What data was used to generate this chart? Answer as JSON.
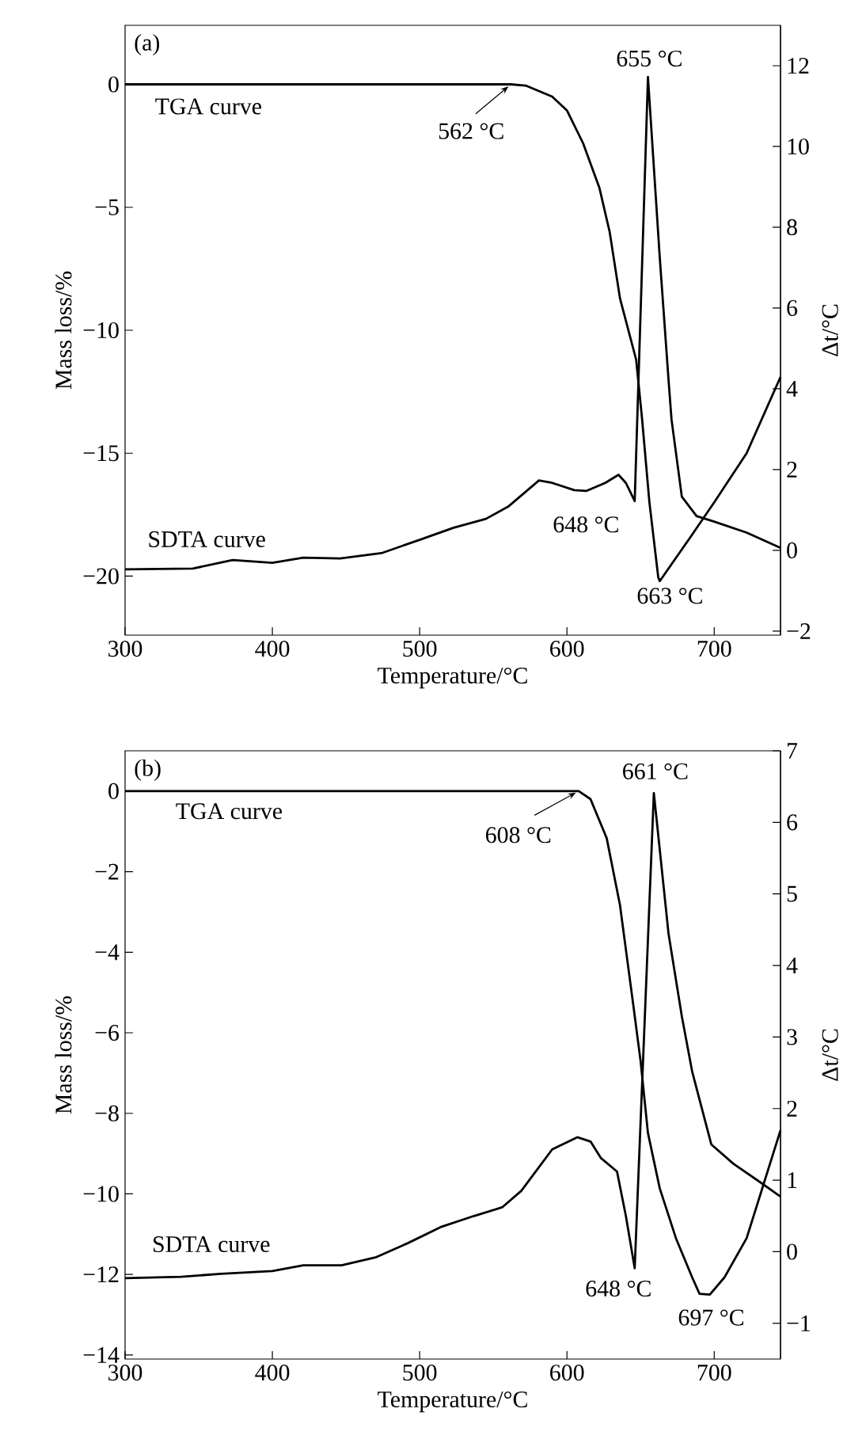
{
  "chart_data": [
    {
      "type": "line",
      "title": "(a)",
      "xlabel": "Temperature/°C",
      "ylabel": "Mass loss/%",
      "y2label": "Δt/°C",
      "xlim": [
        300,
        745
      ],
      "xticks": [
        300,
        400,
        500,
        600,
        700
      ],
      "ylim": [
        -22.4,
        2.4
      ],
      "yticks": [
        0,
        {
          "value": -5,
          "label": "−5"
        },
        {
          "value": -10,
          "label": "−10"
        },
        {
          "value": -15,
          "label": "−15"
        },
        {
          "value": -20,
          "label": "−20"
        }
      ],
      "y2lim": [
        -2.1,
        13
      ],
      "y2ticks": [
        {
          "value": -2,
          "label": "−2"
        },
        0,
        2,
        4,
        6,
        8,
        10,
        12
      ],
      "marker": "none",
      "line_style": "solid",
      "series": [
        {
          "name": "TGA curve",
          "color": "#000000",
          "x": [
            300,
            400,
            500,
            562,
            572,
            590,
            600,
            611,
            622,
            629,
            636,
            647,
            651,
            656,
            662,
            663,
            684,
            700,
            722,
            745
          ],
          "values": [
            0,
            0,
            0,
            0,
            -0.05,
            -0.5,
            -1.06,
            -2.4,
            -4.2,
            -6.0,
            -8.7,
            -11.2,
            -13.6,
            -17.0,
            -20.05,
            -20.2,
            -18.4,
            -17.0,
            -15.0,
            -11.9
          ]
        },
        {
          "name": "SDTA curve",
          "axis": "y2",
          "color": "#000000",
          "x": [
            300,
            346,
            373,
            400,
            421,
            446,
            474,
            500,
            523,
            545,
            560,
            581,
            590,
            605,
            613,
            626,
            635,
            640,
            646,
            655,
            663,
            669,
            671,
            678,
            688,
            700,
            722,
            745
          ],
          "values": [
            -0.47,
            -0.45,
            -0.24,
            -0.31,
            -0.18,
            -0.2,
            -0.07,
            0.26,
            0.56,
            0.78,
            1.08,
            1.73,
            1.67,
            1.49,
            1.47,
            1.67,
            1.87,
            1.67,
            1.22,
            11.72,
            7.26,
            4.21,
            3.24,
            1.33,
            0.85,
            0.71,
            0.44,
            0.06
          ]
        }
      ],
      "annotations": [
        {
          "text": "562 °C",
          "x": 562,
          "y": 0
        },
        "655 °C",
        "648 °C",
        "663 °C"
      ]
    },
    {
      "type": "line",
      "title": "(b)",
      "xlabel": "Temperature/°C",
      "ylabel": "Mass loss/%",
      "y2label": "Δt/°C",
      "xlim": [
        300,
        745
      ],
      "xticks": [
        300,
        400,
        500,
        600,
        700
      ],
      "ylim": [
        -14.1,
        1
      ],
      "yticks": [
        0,
        {
          "value": -2,
          "label": "−2"
        },
        {
          "value": -4,
          "label": "−4"
        },
        {
          "value": -6,
          "label": "−6"
        },
        {
          "value": -8,
          "label": "−8"
        },
        {
          "value": -10,
          "label": "−10"
        },
        {
          "value": -12,
          "label": "−12"
        },
        {
          "value": -14,
          "label": "−14"
        }
      ],
      "y2lim": [
        -1.5,
        7
      ],
      "y2ticks": [
        {
          "value": -1,
          "label": "−1"
        },
        0,
        1,
        2,
        3,
        4,
        5,
        6,
        7
      ],
      "marker": "none",
      "line_style": "solid",
      "series": [
        {
          "name": "TGA curve",
          "color": "#000000",
          "x": [
            300,
            400,
            500,
            600,
            608,
            616,
            627,
            636,
            645,
            650,
            655,
            663,
            674,
            685,
            690,
            697,
            707,
            722,
            745
          ],
          "values": [
            0,
            0,
            0,
            0,
            0,
            -0.2,
            -1.17,
            -2.83,
            -5.3,
            -6.7,
            -8.49,
            -9.86,
            -11.1,
            -12.07,
            -12.48,
            -12.5,
            -12.07,
            -11.1,
            -8.42
          ]
        },
        {
          "name": "SDTA curve",
          "axis": "y2",
          "color": "#000000",
          "x": [
            300,
            338,
            365,
            400,
            421,
            447,
            470,
            492,
            515,
            537,
            556,
            569,
            590,
            607,
            616,
            623,
            634,
            640,
            646,
            659,
            669,
            678,
            685,
            698,
            713,
            732,
            745
          ],
          "values": [
            -0.37,
            -0.35,
            -0.31,
            -0.27,
            -0.19,
            -0.19,
            -0.08,
            0.12,
            0.35,
            0.5,
            0.62,
            0.85,
            1.43,
            1.6,
            1.54,
            1.31,
            1.12,
            0.5,
            -0.23,
            6.41,
            4.44,
            3.29,
            2.52,
            1.5,
            1.23,
            0.96,
            0.77
          ]
        }
      ],
      "annotations": [
        {
          "text": "608 °C",
          "x": 608,
          "y": 0
        },
        "661 °C",
        "648 °C",
        "697 °C"
      ]
    }
  ]
}
